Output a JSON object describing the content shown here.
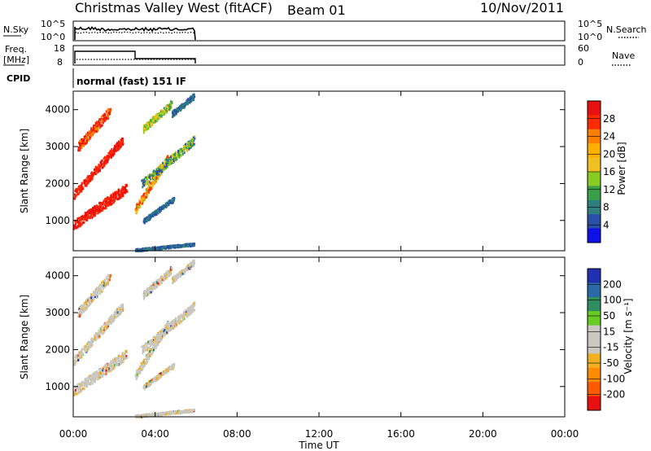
{
  "header": {
    "station": "Christmas Valley West (fitACF)",
    "beam": "Beam 01",
    "date": "10/Nov/2011"
  },
  "top_panels": {
    "nsky_label": "N.Sky",
    "nsearch_label": "N.Search",
    "noise_ticks": [
      "10^5",
      "10^0"
    ],
    "freq_label_1": "Freq.",
    "freq_label_2": "[MHz]",
    "freq_ticks": [
      "18",
      "8"
    ],
    "nave_label": "Nave",
    "nave_ticks": [
      "60",
      "0"
    ],
    "cpid_label": "CPID",
    "cpid_text": "normal (fast) 151 IF"
  },
  "chart_data": [
    {
      "type": "heatmap",
      "name": "power-panel",
      "xlabel": "Time UT",
      "ylabel": "Slant Range [km]",
      "x_range_hours": [
        0,
        24
      ],
      "ylim": [
        180,
        4500
      ],
      "y_ticks": [
        1000,
        2000,
        3000,
        4000
      ],
      "colorbar": {
        "label": "Power [dB]",
        "ticks": [
          "28",
          "24",
          "20",
          "16",
          "12",
          "8",
          "4"
        ],
        "colors": [
          "#e81010",
          "#ff2a00",
          "#ff7f00",
          "#ffb000",
          "#f0c020",
          "#88cc22",
          "#3aa048",
          "#2f7f7f",
          "#2a4fa8",
          "#1010e8"
        ]
      }
    },
    {
      "type": "heatmap",
      "name": "velocity-panel",
      "xlabel": "Time UT",
      "ylabel": "Slant Range [km]",
      "x_range_hours": [
        0,
        24
      ],
      "ylim": [
        180,
        4500
      ],
      "y_ticks": [
        1000,
        2000,
        3000,
        4000
      ],
      "colorbar": {
        "label": "Velocity [m s⁻¹]",
        "ticks": [
          "200",
          "100",
          "50",
          "15",
          "-15",
          "-50",
          "-100",
          "-200"
        ],
        "colors": [
          "#2030b0",
          "#2a6aa8",
          "#2f8f60",
          "#66cc22",
          "#c8c8c0",
          "#c8c8c0",
          "#f0b020",
          "#ff8c00",
          "#ff5a00",
          "#e81010"
        ]
      }
    }
  ],
  "time_axis": {
    "ticks": [
      "00:00",
      "04:00",
      "08:00",
      "12:00",
      "16:00",
      "20:00",
      "00:00"
    ],
    "label": "Time UT"
  }
}
